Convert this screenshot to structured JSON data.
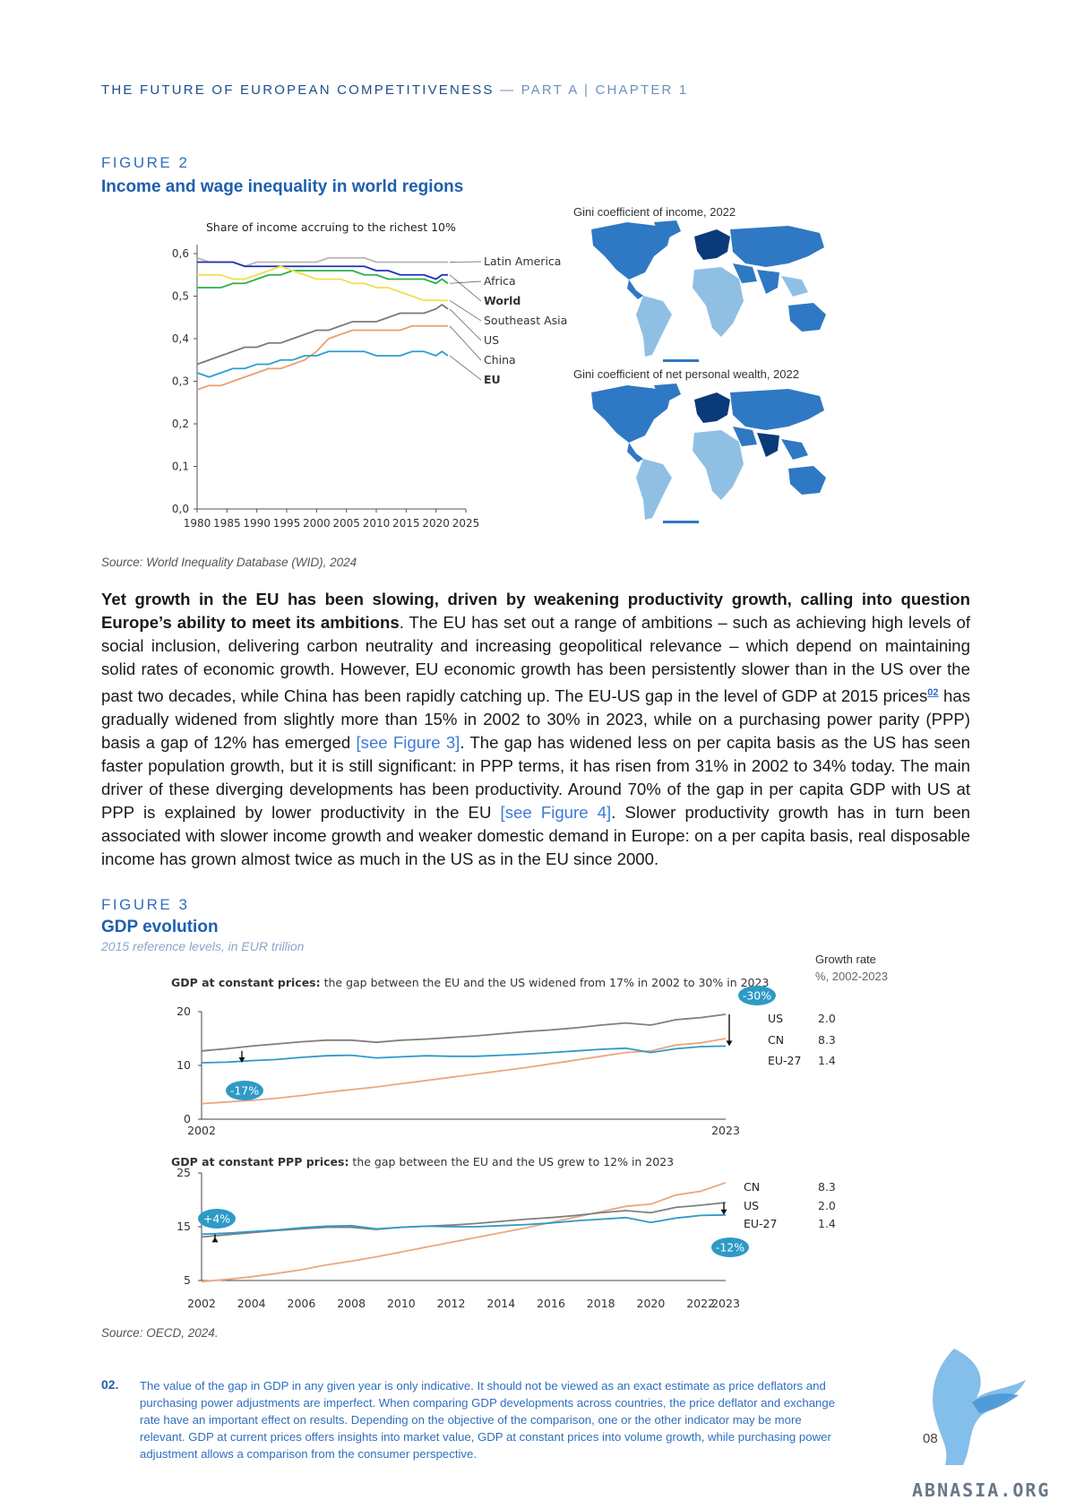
{
  "header": {
    "title": "THE FUTURE OF EUROPEAN COMPETITIVENESS",
    "separator": " — ",
    "part": "PART A | CHAPTER 1"
  },
  "figure2": {
    "label": "FIGURE 2",
    "title": "Income and wage inequality in world regions",
    "source": "Source: World Inequality Database (WID), 2024",
    "map1_title": "Gini coefficient of income, 2022",
    "map2_title": "Gini coefficient of net personal wealth, 2022"
  },
  "body": {
    "lead": "Yet growth in the EU has been slowing, driven by weakening productivity growth, calling into question Europe’s ability to meet its ambitions",
    "p1": ". The EU has set out a range of ambitions – such as achieving high levels of social inclusion, delivering carbon neutrality and increasing geopolitical relevance – which depend on maintaining solid rates of economic growth. However, EU economic growth has been persistently slower than in the US over the past two decades, while China has been rapidly catching up. The EU-US gap in the level of GDP at 2015 prices",
    "fn_ref": "02",
    "p2": " has gradually widened from slightly more than 15% in 2002 to 30% in 2023, while on a purchasing power parity (PPP) basis a gap of 12% has emerged ",
    "ref1": "[see Figure 3]",
    "p3": ". The gap has widened less on per capita basis as the US has seen faster population growth, but it is still significant: in PPP terms, it has risen from 31% in 2002 to 34% today. The main driver of these diverging developments has been productivity. Around 70% of the gap in per capita GDP with US at PPP is explained by lower productivity in the EU ",
    "ref2": "[see Figure 4]",
    "p4": ". Slower productivity growth has in turn been associated with slower income growth and weaker domestic demand in Europe: on a per capita basis, real disposable income has grown almost twice as much in the US as in the EU since 2000."
  },
  "figure3": {
    "label": "FIGURE 3",
    "title": "GDP evolution",
    "subtitle": "2015 reference levels, in EUR trillion",
    "source": "Source: OECD, 2024.",
    "growth_header": "Growth rate",
    "growth_sub": "%, 2002-2023"
  },
  "footnote": {
    "num": "02.",
    "text": "The value of the gap in GDP in any given year is only indicative. It should not be viewed as an exact estimate as price deflators and purchasing power adjustments are imperfect. When comparing GDP developments across countries, the price deflator and exchange rate have an important effect on results. Depending on the objective of the comparison, one or the other indicator may be more relevant. GDP at current prices offers insights into market value, GDP at constant prices into volume growth, while purchasing power adjustment allows a comparison from the consumer perspective."
  },
  "page_number": "08",
  "watermark": "ABNASIA.ORG",
  "colors": {
    "latin_america": "#b5b5b5",
    "africa": "#2bb04a",
    "world": "#1f2fb8",
    "southeast_asia": "#f2de4c",
    "us": "#7a7a7a",
    "china": "#e8a070",
    "eu": "#2a9fd0",
    "gdp_us": "#7f7f7f",
    "gdp_cn": "#e8a881",
    "gdp_eu": "#2e9ac6",
    "map_dark": "#0b3a7a",
    "map_mid": "#2f78c4",
    "map_light": "#8fc0e4"
  },
  "chart_data": [
    {
      "type": "line",
      "title": "Share of income accruing to the richest 10%",
      "xlabel": "",
      "ylabel": "",
      "x_ticks": [
        "1980",
        "1985",
        "1990",
        "1995",
        "2000",
        "2005",
        "2010",
        "2015",
        "2020",
        "2025"
      ],
      "y_ticks": [
        "0,0",
        "0,1",
        "0,2",
        "0,3",
        "0,4",
        "0,5",
        "0,6"
      ],
      "xlim": [
        1980,
        2025
      ],
      "ylim": [
        0,
        0.6
      ],
      "x": [
        1980,
        1982,
        1984,
        1986,
        1988,
        1990,
        1992,
        1994,
        1996,
        1998,
        2000,
        2002,
        2004,
        2006,
        2008,
        2010,
        2012,
        2014,
        2016,
        2018,
        2020,
        2021,
        2022
      ],
      "series": [
        {
          "name": "Latin America",
          "values": [
            0.59,
            0.58,
            0.58,
            0.58,
            0.57,
            0.58,
            0.58,
            0.58,
            0.58,
            0.58,
            0.58,
            0.59,
            0.59,
            0.59,
            0.59,
            0.58,
            0.58,
            0.58,
            0.58,
            0.58,
            0.58,
            0.58,
            0.58
          ]
        },
        {
          "name": "Africa",
          "values": [
            0.52,
            0.52,
            0.52,
            0.53,
            0.53,
            0.54,
            0.55,
            0.55,
            0.56,
            0.56,
            0.56,
            0.56,
            0.56,
            0.56,
            0.55,
            0.55,
            0.54,
            0.54,
            0.54,
            0.54,
            0.53,
            0.54,
            0.53
          ]
        },
        {
          "name": "World",
          "values": [
            0.58,
            0.58,
            0.58,
            0.58,
            0.57,
            0.57,
            0.57,
            0.57,
            0.57,
            0.57,
            0.57,
            0.57,
            0.57,
            0.57,
            0.57,
            0.56,
            0.56,
            0.55,
            0.55,
            0.55,
            0.54,
            0.55,
            0.55
          ]
        },
        {
          "name": "Southeast Asia",
          "values": [
            0.55,
            0.55,
            0.55,
            0.54,
            0.54,
            0.55,
            0.56,
            0.57,
            0.56,
            0.55,
            0.54,
            0.54,
            0.54,
            0.53,
            0.53,
            0.52,
            0.52,
            0.51,
            0.5,
            0.49,
            0.49,
            0.49,
            0.49
          ]
        },
        {
          "name": "US",
          "values": [
            0.34,
            0.35,
            0.36,
            0.37,
            0.38,
            0.38,
            0.39,
            0.39,
            0.4,
            0.41,
            0.42,
            0.42,
            0.43,
            0.44,
            0.44,
            0.44,
            0.45,
            0.46,
            0.46,
            0.46,
            0.47,
            0.48,
            0.47
          ]
        },
        {
          "name": "China",
          "values": [
            0.28,
            0.29,
            0.29,
            0.3,
            0.31,
            0.32,
            0.33,
            0.33,
            0.34,
            0.35,
            0.37,
            0.4,
            0.41,
            0.42,
            0.42,
            0.42,
            0.42,
            0.42,
            0.43,
            0.43,
            0.43,
            0.43,
            0.43
          ]
        },
        {
          "name": "EU",
          "values": [
            0.32,
            0.31,
            0.32,
            0.33,
            0.33,
            0.34,
            0.34,
            0.35,
            0.35,
            0.36,
            0.36,
            0.37,
            0.37,
            0.37,
            0.37,
            0.36,
            0.36,
            0.36,
            0.37,
            0.37,
            0.36,
            0.37,
            0.36
          ]
        }
      ],
      "legend_placement": "right"
    },
    {
      "type": "line",
      "title": "GDP at constant prices: the gap between the EU and the US widened from 17% in 2002 to 30% in 2023",
      "title_bold": "GDP at constant prices:",
      "title_rest": " the gap between the EU and the US widened from 17% in 2002 to 30% in 2023",
      "x": [
        2002,
        2003,
        2004,
        2005,
        2006,
        2007,
        2008,
        2009,
        2010,
        2011,
        2012,
        2013,
        2014,
        2015,
        2016,
        2017,
        2018,
        2019,
        2020,
        2021,
        2022,
        2023
      ],
      "x_ticks": [
        "2002",
        "2023"
      ],
      "y_ticks": [
        "0",
        "10",
        "20"
      ],
      "xlim": [
        2002,
        2023
      ],
      "ylim": [
        0,
        20
      ],
      "series": [
        {
          "name": "US",
          "growth": "2.0",
          "values": [
            12.7,
            13.1,
            13.6,
            14.0,
            14.4,
            14.7,
            14.7,
            14.3,
            14.7,
            14.9,
            15.2,
            15.5,
            15.9,
            16.3,
            16.6,
            17.0,
            17.5,
            17.9,
            17.5,
            18.5,
            18.9,
            19.5
          ]
        },
        {
          "name": "CN",
          "growth": "8.3",
          "values": [
            2.9,
            3.2,
            3.5,
            3.9,
            4.4,
            5.0,
            5.5,
            6.0,
            6.6,
            7.2,
            7.8,
            8.4,
            9.0,
            9.6,
            10.3,
            11.0,
            11.7,
            12.4,
            12.7,
            13.8,
            14.2,
            15.0
          ]
        },
        {
          "name": "EU-27",
          "growth": "1.4",
          "values": [
            10.5,
            10.6,
            10.9,
            11.1,
            11.5,
            11.8,
            11.9,
            11.4,
            11.6,
            11.8,
            11.7,
            11.7,
            11.9,
            12.1,
            12.4,
            12.7,
            13.0,
            13.2,
            12.4,
            13.1,
            13.5,
            13.6
          ]
        }
      ],
      "annotations": [
        "-17%",
        "-30%"
      ]
    },
    {
      "type": "line",
      "title": "GDP at constant PPP prices: the gap between the EU and the US grew to 12% in 2023",
      "title_bold": "GDP at constant PPP prices:",
      "title_rest": " the gap between the EU and the US grew to 12% in 2023",
      "x": [
        2002,
        2003,
        2004,
        2005,
        2006,
        2007,
        2008,
        2009,
        2010,
        2011,
        2012,
        2013,
        2014,
        2015,
        2016,
        2017,
        2018,
        2019,
        2020,
        2021,
        2022,
        2023
      ],
      "x_ticks": [
        "2002",
        "2004",
        "2006",
        "2008",
        "2010",
        "2012",
        "2014",
        "2016",
        "2018",
        "2020",
        "2022",
        "2023"
      ],
      "y_ticks": [
        "5",
        "15",
        "25"
      ],
      "xlim": [
        2002,
        2023
      ],
      "ylim": [
        5,
        25
      ],
      "series": [
        {
          "name": "CN",
          "growth": "8.3",
          "values": [
            4.8,
            5.2,
            5.7,
            6.3,
            7.0,
            7.9,
            8.6,
            9.4,
            10.3,
            11.2,
            12.1,
            13.0,
            13.9,
            14.8,
            15.8,
            16.8,
            17.8,
            18.8,
            19.2,
            20.9,
            21.6,
            23.2
          ]
        },
        {
          "name": "US",
          "growth": "2.0",
          "values": [
            13.1,
            13.5,
            13.9,
            14.3,
            14.6,
            14.9,
            14.9,
            14.5,
            14.9,
            15.1,
            15.3,
            15.6,
            16.0,
            16.4,
            16.7,
            17.1,
            17.6,
            18.0,
            17.6,
            18.6,
            19.0,
            19.5
          ]
        },
        {
          "name": "EU-27",
          "growth": "1.4",
          "values": [
            13.6,
            13.8,
            14.1,
            14.4,
            14.8,
            15.1,
            15.2,
            14.6,
            14.9,
            15.1,
            15.0,
            15.0,
            15.2,
            15.4,
            15.7,
            16.1,
            16.4,
            16.7,
            15.8,
            16.6,
            17.1,
            17.2
          ]
        }
      ],
      "annotations": [
        "+4%",
        "-12%"
      ]
    }
  ]
}
